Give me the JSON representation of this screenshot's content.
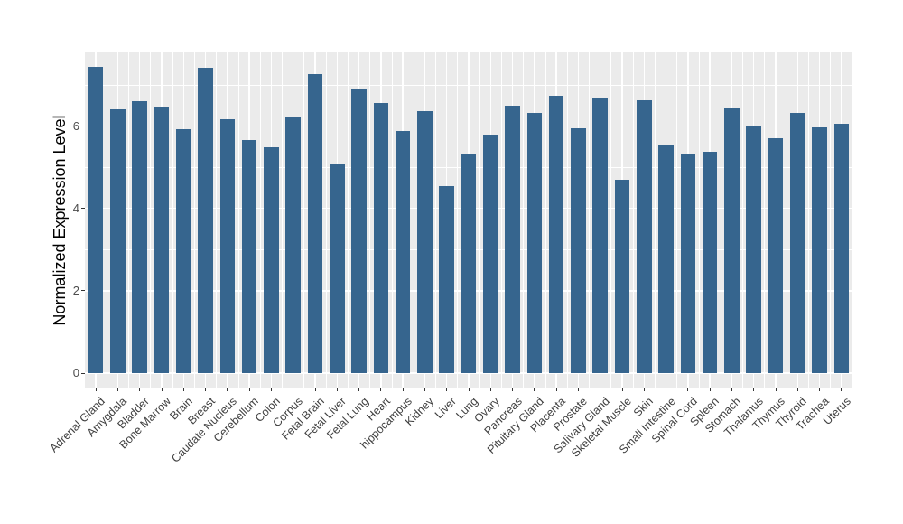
{
  "figure": {
    "background_color": "#ffffff",
    "panel_background_color": "#ebebeb",
    "gridline_color": "#ffffff",
    "tick_mark_color": "#333333",
    "axis_text_color": "#404040",
    "axis_title_color": "#000000"
  },
  "chart_data": {
    "type": "bar",
    "title": "",
    "xlabel": "",
    "ylabel": "Normalized Expression Level",
    "bar_color": "#36658e",
    "categories": [
      "Adrenal Gland",
      "Amygdala",
      "Bladder",
      "Bone Marrow",
      "Brain",
      "Breast",
      "Caudate Nucleus",
      "Cerebellum",
      "Colon",
      "Corpus",
      "Fetal Brain",
      "Fetal Liver",
      "Fetal Lung",
      "Heart",
      "hippocampus",
      "Kidney",
      "Liver",
      "Lung",
      "Ovary",
      "Pancreas",
      "Pituitary Gland",
      "Placenta",
      "Prostate",
      "Salivary Gland",
      "Skeletal Muscle",
      "Skin",
      "Small Intestine",
      "Spinal Cord",
      "Spleen",
      "Stomach",
      "Thalamus",
      "Thymus",
      "Thyroid",
      "Trachea",
      "Uterus"
    ],
    "values": [
      7.44,
      6.41,
      6.61,
      6.47,
      5.92,
      7.42,
      6.16,
      5.67,
      5.48,
      6.2,
      7.26,
      5.07,
      6.9,
      6.57,
      5.88,
      6.37,
      4.54,
      5.3,
      5.79,
      6.5,
      6.31,
      6.73,
      5.95,
      6.7,
      4.7,
      6.63,
      5.56,
      5.31,
      5.38,
      6.44,
      5.99,
      5.7,
      6.33,
      5.97,
      6.06
    ],
    "yticks": [
      0,
      2,
      4,
      6
    ],
    "yticks_minor": [
      1,
      3,
      5,
      7
    ],
    "ylim": [
      -0.35,
      7.79
    ],
    "grid": true,
    "legend": false,
    "x_label_rotation_deg": 45
  }
}
